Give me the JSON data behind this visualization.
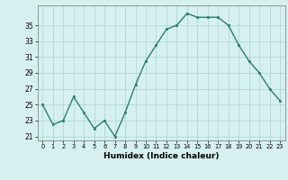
{
  "x": [
    0,
    1,
    2,
    3,
    4,
    5,
    6,
    7,
    8,
    9,
    10,
    11,
    12,
    13,
    14,
    15,
    16,
    17,
    18,
    19,
    20,
    21,
    22,
    23
  ],
  "y": [
    25,
    22.5,
    23,
    26,
    24,
    22,
    23,
    21,
    24,
    27.5,
    30.5,
    32.5,
    34.5,
    35,
    36.5,
    36,
    36,
    36,
    35,
    32.5,
    30.5,
    29,
    27,
    25.5
  ],
  "line_color": "#2e7d6e",
  "marker_color": "#2e7d6e",
  "bg_color": "#d6f0f0",
  "grid_color": "#b0d8d8",
  "xlabel": "Humidex (Indice chaleur)",
  "yticks": [
    21,
    23,
    25,
    27,
    29,
    31,
    33,
    35
  ],
  "ylim": [
    20.5,
    37.5
  ],
  "xlim": [
    -0.5,
    23.5
  ]
}
